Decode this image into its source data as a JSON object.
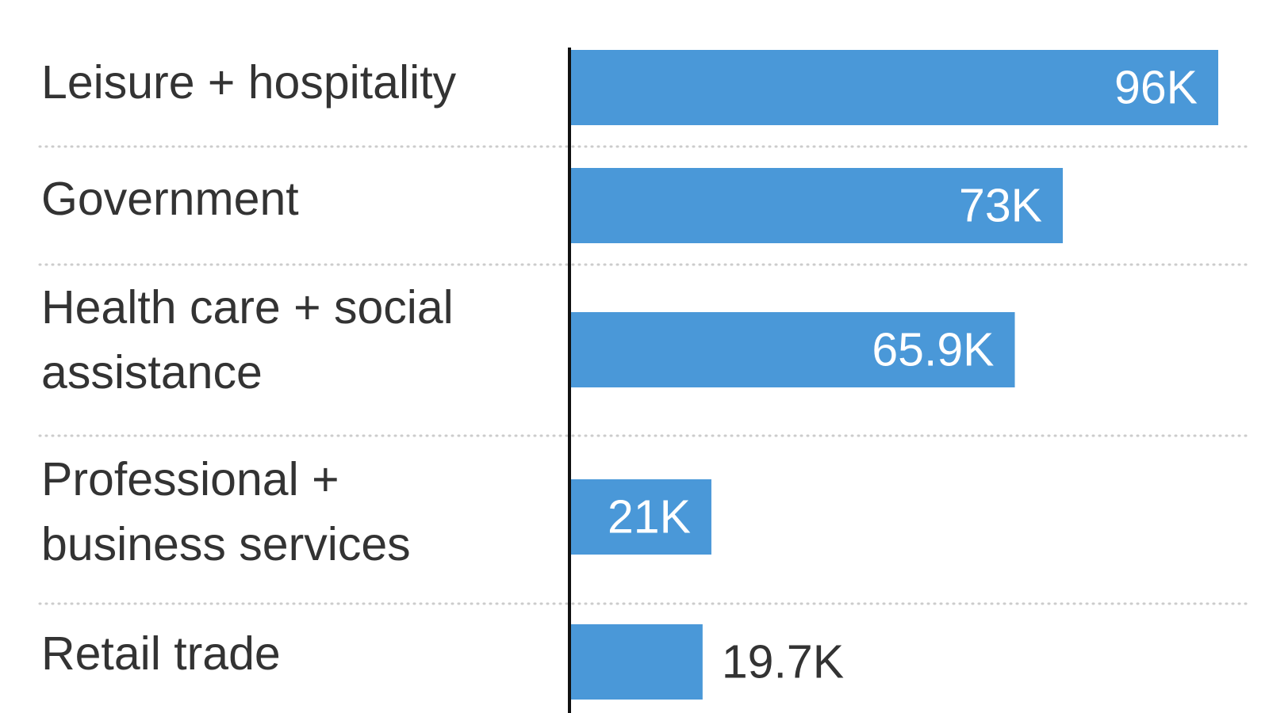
{
  "chart_data": {
    "type": "bar",
    "orientation": "horizontal",
    "categories": [
      [
        "Leisure + hospitality"
      ],
      [
        "Government"
      ],
      [
        "Health care + social",
        "assistance"
      ],
      [
        "Professional +",
        "business services"
      ],
      [
        "Retail trade"
      ]
    ],
    "values": [
      96,
      73,
      65.9,
      21,
      19.7
    ],
    "value_labels": [
      "96K",
      "73K",
      "65.9K",
      "21K",
      "19.7K"
    ],
    "xlim": [
      0,
      96
    ],
    "grid": "dotted horizontal separators",
    "colors": {
      "bar": "#4a98d8",
      "label_inside": "#ffffff",
      "label_outside": "#333333",
      "category_text": "#333333",
      "axis": "#111111",
      "separator": "#cccccc"
    }
  }
}
